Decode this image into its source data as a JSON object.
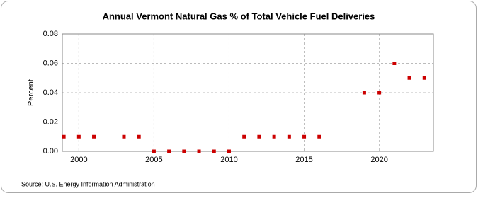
{
  "chart_data": {
    "type": "scatter",
    "title": "Annual Vermont Natural Gas % of Total Vehicle Fuel Deliveries",
    "ylabel": "Percent",
    "source": "Source: U.S. Energy Information Administration",
    "series": [
      {
        "color": "#cc0000",
        "x": [
          1999,
          2000,
          2001,
          2003,
          2004,
          2005,
          2006,
          2007,
          2008,
          2009,
          2010,
          2011,
          2012,
          2013,
          2014,
          2015,
          2016,
          2019,
          2020,
          2021,
          2022,
          2023
        ],
        "values": [
          0.01,
          0.01,
          0.01,
          0.01,
          0.01,
          0,
          0,
          0,
          0,
          0,
          0,
          0.01,
          0.01,
          0.01,
          0.01,
          0.01,
          0.01,
          0.04,
          0.04,
          0.06,
          0.05,
          0.05
        ]
      }
    ],
    "xlim": [
      1998.9,
      2023.6
    ],
    "xticks": [
      2000,
      2005,
      2010,
      2015,
      2020
    ],
    "ylim": [
      0,
      0.08
    ],
    "yticks": [
      {
        "value": 0,
        "label": "0.00"
      },
      0.02,
      0.04,
      0.06,
      0.08
    ],
    "grid": true
  }
}
